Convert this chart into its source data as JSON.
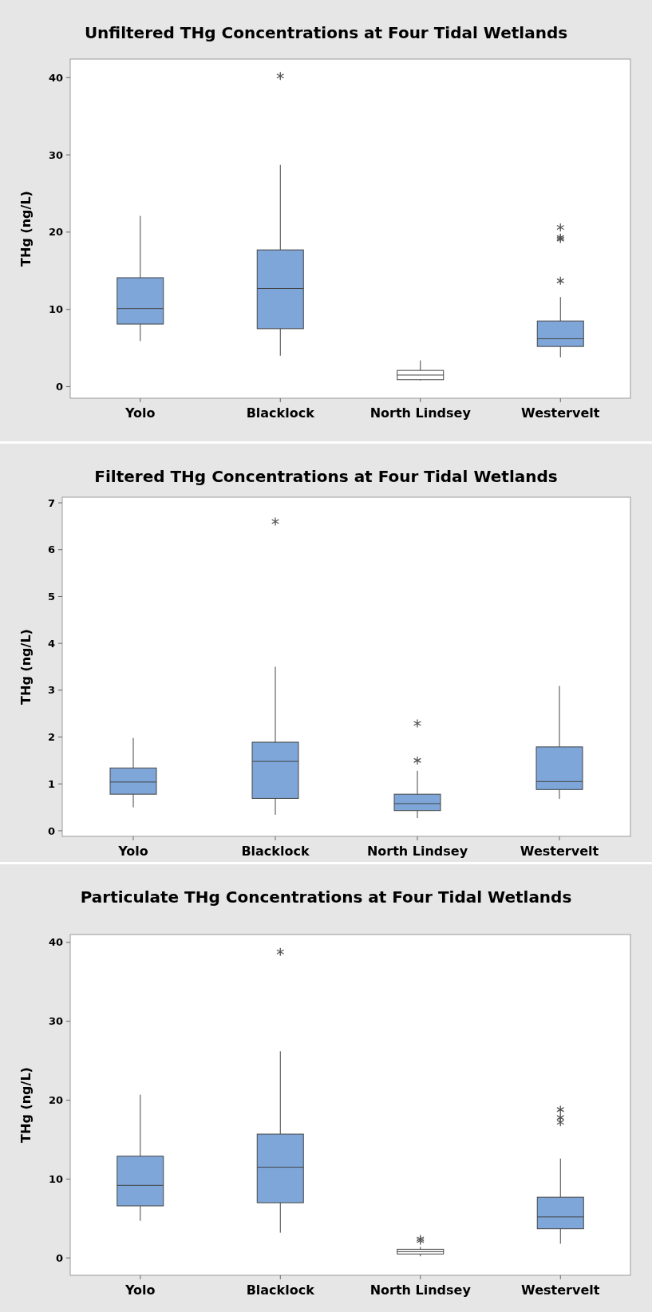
{
  "chart_data": [
    {
      "type": "box",
      "title": "Unfiltered THg Concentrations at Four Tidal Wetlands",
      "ylabel": "THg (ng/L)",
      "categories": [
        "Yolo",
        "Blacklock",
        "North Lindsey",
        "Westervelt"
      ],
      "colors": [
        "#7ea6d9",
        "#7ea6d9",
        "#ffffff",
        "#7ea6d9"
      ],
      "ylim": [
        -1.5,
        42.4
      ],
      "yticks": [
        0,
        10,
        20,
        30,
        40
      ],
      "boxes": [
        {
          "low": 5.9,
          "q1": 8.1,
          "median": 10.1,
          "q3": 14.1,
          "high": 22.1
        },
        {
          "low": 4.0,
          "q1": 7.5,
          "median": 12.7,
          "q3": 17.7,
          "high": 28.7,
          "outliers": [
            40.2
          ]
        },
        {
          "low": 0.8,
          "q1": 0.9,
          "median": 1.5,
          "q3": 2.1,
          "high": 3.4
        },
        {
          "low": 3.8,
          "q1": 5.2,
          "median": 6.2,
          "q3": 8.5,
          "high": 11.6,
          "outliers": [
            20.6,
            19.3,
            19.1,
            13.7
          ]
        }
      ]
    },
    {
      "type": "box",
      "title": "Filtered THg Concentrations at Four Tidal Wetlands",
      "ylabel": "THg (ng/L)",
      "categories": [
        "Yolo",
        "Blacklock",
        "North Lindsey",
        "Westervelt"
      ],
      "colors": [
        "#7ea6d9",
        "#7ea6d9",
        "#7ea6d9",
        "#7ea6d9"
      ],
      "ylim": [
        -0.12,
        7.12
      ],
      "yticks": [
        0,
        1,
        2,
        3,
        4,
        5,
        6,
        7
      ],
      "boxes": [
        {
          "low": 0.5,
          "q1": 0.78,
          "median": 1.04,
          "q3": 1.34,
          "high": 1.98
        },
        {
          "low": 0.34,
          "q1": 0.69,
          "median": 1.48,
          "q3": 1.89,
          "high": 3.5,
          "outliers": [
            6.6
          ]
        },
        {
          "low": 0.27,
          "q1": 0.43,
          "median": 0.58,
          "q3": 0.78,
          "high": 1.28,
          "outliers": [
            2.29,
            1.5
          ]
        },
        {
          "low": 0.68,
          "q1": 0.88,
          "median": 1.05,
          "q3": 1.79,
          "high": 3.09
        }
      ]
    },
    {
      "type": "box",
      "title": "Particulate THg Concentrations at Four Tidal Wetlands",
      "ylabel": "THg (ng/L)",
      "categories": [
        "Yolo",
        "Blacklock",
        "North Lindsey",
        "Westervelt"
      ],
      "colors": [
        "#7ea6d9",
        "#7ea6d9",
        "#ffffff",
        "#7ea6d9"
      ],
      "ylim": [
        -2.2,
        41.0
      ],
      "yticks": [
        0,
        10,
        20,
        30,
        40
      ],
      "boxes": [
        {
          "low": 4.7,
          "q1": 6.6,
          "median": 9.2,
          "q3": 12.9,
          "high": 20.7
        },
        {
          "low": 3.2,
          "q1": 7.0,
          "median": 11.5,
          "q3": 15.7,
          "high": 26.2,
          "outliers": [
            38.8
          ]
        },
        {
          "low": 0.2,
          "q1": 0.5,
          "median": 0.8,
          "q3": 1.1,
          "high": 1.4,
          "outliers": [
            2.4,
            2.2
          ]
        },
        {
          "low": 1.8,
          "q1": 3.7,
          "median": 5.2,
          "q3": 7.7,
          "high": 12.6,
          "outliers": [
            18.8,
            17.8,
            17.2
          ]
        }
      ]
    }
  ]
}
